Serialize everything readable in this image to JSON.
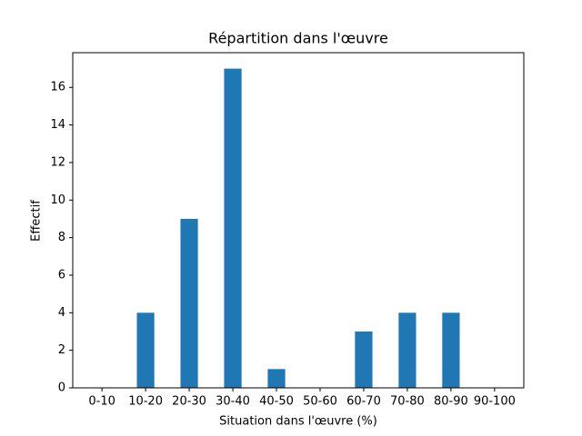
{
  "chart_data": {
    "type": "bar",
    "title": "Répartition dans l'œuvre",
    "x_label": "Situation dans l'œuvre (%)",
    "y_label": "Effectif",
    "categories": [
      "0-10",
      "10-20",
      "20-30",
      "30-40",
      "40-50",
      "50-60",
      "60-70",
      "70-80",
      "80-90",
      "90-100"
    ],
    "values": [
      0,
      4,
      9,
      17,
      1,
      0,
      3,
      4,
      4,
      0
    ],
    "color": "#1f77b4",
    "ylim": [
      0,
      17.85
    ],
    "yticks": [
      0,
      2,
      4,
      6,
      8,
      10,
      12,
      14,
      16
    ],
    "grid": false
  }
}
